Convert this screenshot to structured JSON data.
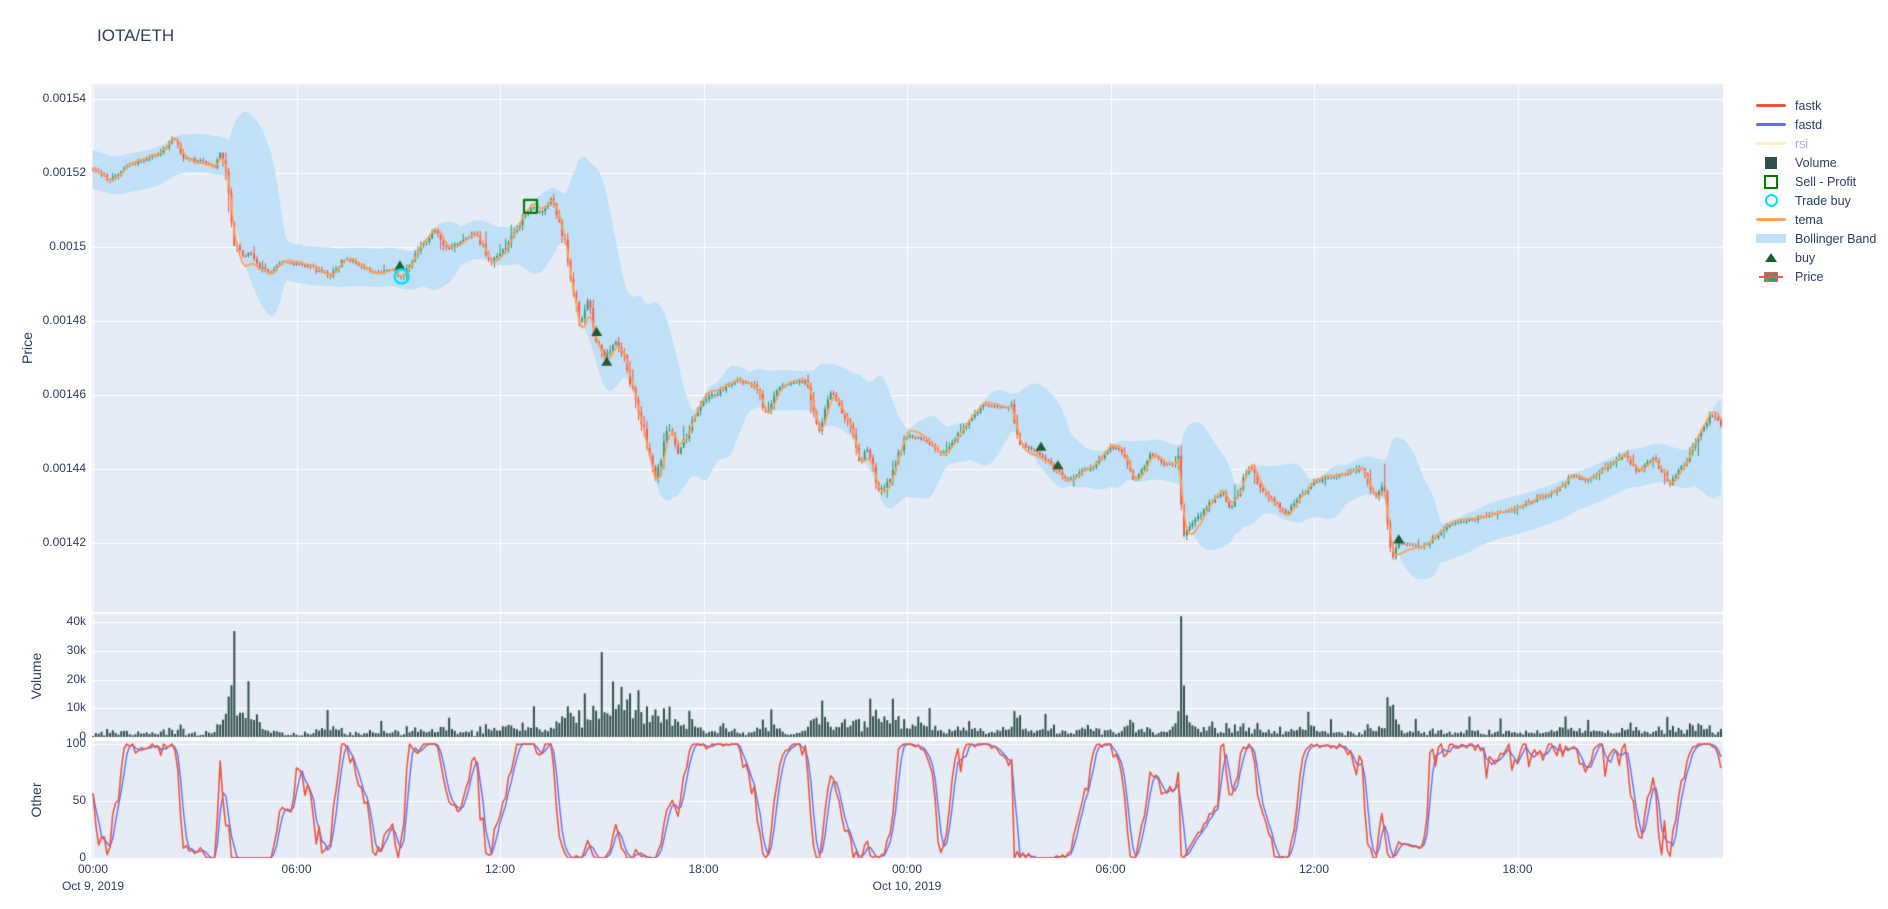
{
  "title": "IOTA/ETH",
  "colors": {
    "background": "#ffffff",
    "plot_bg": "#E5ECF6",
    "grid": "#ffffff",
    "text": "#2a3f5f",
    "muted_text": "#a5afc2",
    "candle_up": "#3D9970",
    "candle_down": "#ef5a4e",
    "tema": "#FFA15A",
    "bollinger": "#bfe0f6",
    "volume_bar": "#31504d",
    "fastk": "#EF553B",
    "fastd": "#636EFA",
    "rsi": "#FECB52",
    "buy_marker": "#1d5d33",
    "sell_marker": "#008000",
    "trade_buy_marker": "#00E1FF"
  },
  "legend": [
    {
      "label": "fastk",
      "type": "line",
      "color": "#EF553B",
      "hidden": false
    },
    {
      "label": "fastd",
      "type": "line",
      "color": "#636EFA",
      "hidden": false
    },
    {
      "label": "rsi",
      "type": "line",
      "color": "#FECB52",
      "hidden": true
    },
    {
      "label": "Volume",
      "type": "square",
      "color": "#31504d",
      "hidden": false
    },
    {
      "label": "Sell - Profit",
      "type": "square-open",
      "color": "#008000",
      "hidden": false
    },
    {
      "label": "Trade buy",
      "type": "circle-open",
      "color": "#00E1FF",
      "hidden": false
    },
    {
      "label": "tema",
      "type": "line",
      "color": "#FFA15A",
      "hidden": false
    },
    {
      "label": "Bollinger Band",
      "type": "band",
      "color": "#bfe0f6",
      "hidden": false
    },
    {
      "label": "buy",
      "type": "triangle",
      "color": "#1d5d33",
      "hidden": false
    },
    {
      "label": "Price",
      "type": "candle",
      "color": "#3D9970",
      "hidden": false
    }
  ],
  "axes": {
    "price": {
      "title": "Price",
      "tick_labels": [
        "0.00154",
        "0.00152",
        "0.0015",
        "0.00148",
        "0.00146",
        "0.00144",
        "0.00142"
      ]
    },
    "volume": {
      "title": "Volume",
      "tick_labels": [
        "40k",
        "30k",
        "20k",
        "10k",
        "0"
      ]
    },
    "other": {
      "title": "Other",
      "tick_labels": [
        "100",
        "50",
        "0"
      ]
    },
    "x": {
      "ticks": [
        {
          "time": "00:00",
          "date": "Oct 9, 2019"
        },
        {
          "time": "06:00",
          "date": ""
        },
        {
          "time": "12:00",
          "date": ""
        },
        {
          "time": "18:00",
          "date": ""
        },
        {
          "time": "00:00",
          "date": "Oct 10, 2019"
        },
        {
          "time": "06:00",
          "date": ""
        },
        {
          "time": "12:00",
          "date": ""
        },
        {
          "time": "18:00",
          "date": ""
        }
      ]
    }
  },
  "chart_data": {
    "type": "candlestick",
    "title": "IOTA/ETH",
    "panels": [
      "Price",
      "Volume",
      "Other"
    ],
    "x_axis": {
      "start": "Oct 9, 2019 00:00",
      "end": "Oct 10, 2019 ~24:00",
      "hours_span": 48.06,
      "tick_interval_hours": 6
    },
    "price_axis_range": [
      0.001402,
      0.0015441
    ],
    "volume_axis_range": [
      0,
      43000
    ],
    "oscillator_axis_range": [
      0,
      100
    ],
    "grid": true,
    "legend_position": "right",
    "close_anchors": [
      [
        0.0,
        0.001521
      ],
      [
        0.5,
        0.001518
      ],
      [
        1.0,
        0.001522
      ],
      [
        1.6,
        0.001524
      ],
      [
        2.2,
        0.001527
      ],
      [
        2.35,
        0.00153
      ],
      [
        2.7,
        0.001524
      ],
      [
        3.2,
        0.001523
      ],
      [
        3.6,
        0.001522
      ],
      [
        3.75,
        0.001525
      ],
      [
        3.95,
        0.00152
      ],
      [
        4.15,
        0.001502
      ],
      [
        4.4,
        0.001497
      ],
      [
        4.65,
        0.001499
      ],
      [
        4.85,
        0.001495
      ],
      [
        5.2,
        0.001493
      ],
      [
        5.6,
        0.001496
      ],
      [
        6.3,
        0.001495
      ],
      [
        7.0,
        0.001492
      ],
      [
        7.4,
        0.001497
      ],
      [
        7.9,
        0.001495
      ],
      [
        8.35,
        0.001493
      ],
      [
        8.8,
        0.001494
      ],
      [
        9.05,
        0.001491
      ],
      [
        9.5,
        0.001498
      ],
      [
        10.1,
        0.001505
      ],
      [
        10.45,
        0.001499
      ],
      [
        10.85,
        0.001502
      ],
      [
        11.25,
        0.001504
      ],
      [
        11.75,
        0.001496
      ],
      [
        12.2,
        0.0015
      ],
      [
        12.55,
        0.001506
      ],
      [
        12.9,
        0.001511
      ],
      [
        13.2,
        0.001509
      ],
      [
        13.5,
        0.001513
      ],
      [
        13.8,
        0.001506
      ],
      [
        14.05,
        0.001495
      ],
      [
        14.35,
        0.001478
      ],
      [
        14.6,
        0.001486
      ],
      [
        14.85,
        0.001474
      ],
      [
        15.1,
        0.00147
      ],
      [
        15.4,
        0.001475
      ],
      [
        15.7,
        0.001469
      ],
      [
        16.0,
        0.001458
      ],
      [
        16.3,
        0.001448
      ],
      [
        16.6,
        0.001437
      ],
      [
        16.95,
        0.001452
      ],
      [
        17.25,
        0.001444
      ],
      [
        17.6,
        0.001451
      ],
      [
        17.95,
        0.001458
      ],
      [
        18.5,
        0.001461
      ],
      [
        19.0,
        0.001464
      ],
      [
        19.55,
        0.001462
      ],
      [
        19.85,
        0.001455
      ],
      [
        20.25,
        0.001462
      ],
      [
        21.0,
        0.001464
      ],
      [
        21.4,
        0.00145
      ],
      [
        21.75,
        0.001461
      ],
      [
        22.3,
        0.001452
      ],
      [
        22.6,
        0.001441
      ],
      [
        22.85,
        0.001446
      ],
      [
        23.15,
        0.001434
      ],
      [
        23.5,
        0.001437
      ],
      [
        23.95,
        0.001449
      ],
      [
        24.55,
        0.001448
      ],
      [
        25.05,
        0.001444
      ],
      [
        25.55,
        0.00145
      ],
      [
        26.25,
        0.001457
      ],
      [
        27.1,
        0.001457
      ],
      [
        27.3,
        0.001447
      ],
      [
        27.95,
        0.001444
      ],
      [
        28.45,
        0.001439
      ],
      [
        28.7,
        0.001437
      ],
      [
        29.5,
        0.001441
      ],
      [
        30.0,
        0.001446
      ],
      [
        30.4,
        0.001444
      ],
      [
        30.7,
        0.001437
      ],
      [
        31.2,
        0.001444
      ],
      [
        31.6,
        0.001441
      ],
      [
        32.0,
        0.001442
      ],
      [
        32.15,
        0.001422
      ],
      [
        32.65,
        0.001428
      ],
      [
        33.3,
        0.001434
      ],
      [
        33.55,
        0.001429
      ],
      [
        34.1,
        0.001441
      ],
      [
        34.45,
        0.001434
      ],
      [
        35.2,
        0.001428
      ],
      [
        35.9,
        0.001436
      ],
      [
        36.6,
        0.001438
      ],
      [
        37.4,
        0.00144
      ],
      [
        37.8,
        0.001432
      ],
      [
        38.05,
        0.001436
      ],
      [
        38.3,
        0.001416
      ],
      [
        38.5,
        0.00142
      ],
      [
        39.2,
        0.001419
      ],
      [
        40.0,
        0.001425
      ],
      [
        41.9,
        0.001429
      ],
      [
        42.3,
        0.001431
      ],
      [
        43.1,
        0.001434
      ],
      [
        43.6,
        0.001438
      ],
      [
        44.0,
        0.001437
      ],
      [
        44.7,
        0.001441
      ],
      [
        45.2,
        0.001444
      ],
      [
        45.5,
        0.001439
      ],
      [
        46.0,
        0.001443
      ],
      [
        46.5,
        0.001436
      ],
      [
        47.1,
        0.001444
      ],
      [
        47.7,
        0.001455
      ],
      [
        48.06,
        0.001451
      ]
    ],
    "volume_spikes": [
      [
        4.15,
        40500
      ],
      [
        4.6,
        24000
      ],
      [
        4.8,
        12000
      ],
      [
        6.9,
        11500
      ],
      [
        8.5,
        4500
      ],
      [
        10.5,
        5000
      ],
      [
        12.2,
        8000
      ],
      [
        13.0,
        9500
      ],
      [
        13.9,
        7000
      ],
      [
        14.5,
        11000
      ],
      [
        15.0,
        25500
      ],
      [
        15.35,
        18000
      ],
      [
        15.55,
        35000
      ],
      [
        15.8,
        15000
      ],
      [
        16.1,
        14000
      ],
      [
        16.55,
        13000
      ],
      [
        17.0,
        9000
      ],
      [
        17.6,
        8000
      ],
      [
        18.6,
        5500
      ],
      [
        20.0,
        6000
      ],
      [
        21.5,
        9000
      ],
      [
        22.2,
        10000
      ],
      [
        22.9,
        13000
      ],
      [
        23.3,
        16000
      ],
      [
        23.6,
        12000
      ],
      [
        24.3,
        17000
      ],
      [
        24.65,
        12000
      ],
      [
        25.8,
        8000
      ],
      [
        26.8,
        9000
      ],
      [
        27.3,
        10000
      ],
      [
        28.1,
        9000
      ],
      [
        29.3,
        10500
      ],
      [
        30.6,
        5000
      ],
      [
        32.1,
        37500
      ],
      [
        33.0,
        4500
      ],
      [
        35.85,
        10500
      ],
      [
        36.5,
        5000
      ],
      [
        38.35,
        10000
      ],
      [
        39.0,
        5500
      ],
      [
        40.6,
        8000
      ],
      [
        41.5,
        5000
      ],
      [
        43.45,
        15500
      ],
      [
        44.1,
        7000
      ],
      [
        45.3,
        6000
      ],
      [
        46.4,
        4500
      ],
      [
        47.3,
        6500
      ]
    ],
    "markers": {
      "buy": [
        [
          9.05,
          0.001495
        ],
        [
          14.85,
          0.001477
        ],
        [
          15.15,
          0.001469
        ],
        [
          27.95,
          0.001446
        ],
        [
          28.45,
          0.001441
        ],
        [
          38.5,
          0.001421
        ]
      ],
      "trade_buy": [
        [
          9.1,
          0.001492
        ]
      ],
      "sell_profit": [
        [
          12.9,
          0.001511
        ]
      ]
    },
    "indicators": {
      "tema": {
        "panel": "Price",
        "color": "#FFA15A"
      },
      "bollinger_band": {
        "panel": "Price",
        "window": 20,
        "stdev_mult": 2,
        "color": "#bfe0f6"
      },
      "fastk": {
        "panel": "Other",
        "range": [
          0,
          100
        ],
        "color": "#EF553B"
      },
      "fastd": {
        "panel": "Other",
        "range": [
          0,
          100
        ],
        "color": "#636EFA"
      },
      "rsi": {
        "panel": "Other",
        "visible": false
      }
    },
    "render": {
      "seed": 11,
      "candle_count": 577,
      "candle_interval_hours": 0.0833
    }
  }
}
